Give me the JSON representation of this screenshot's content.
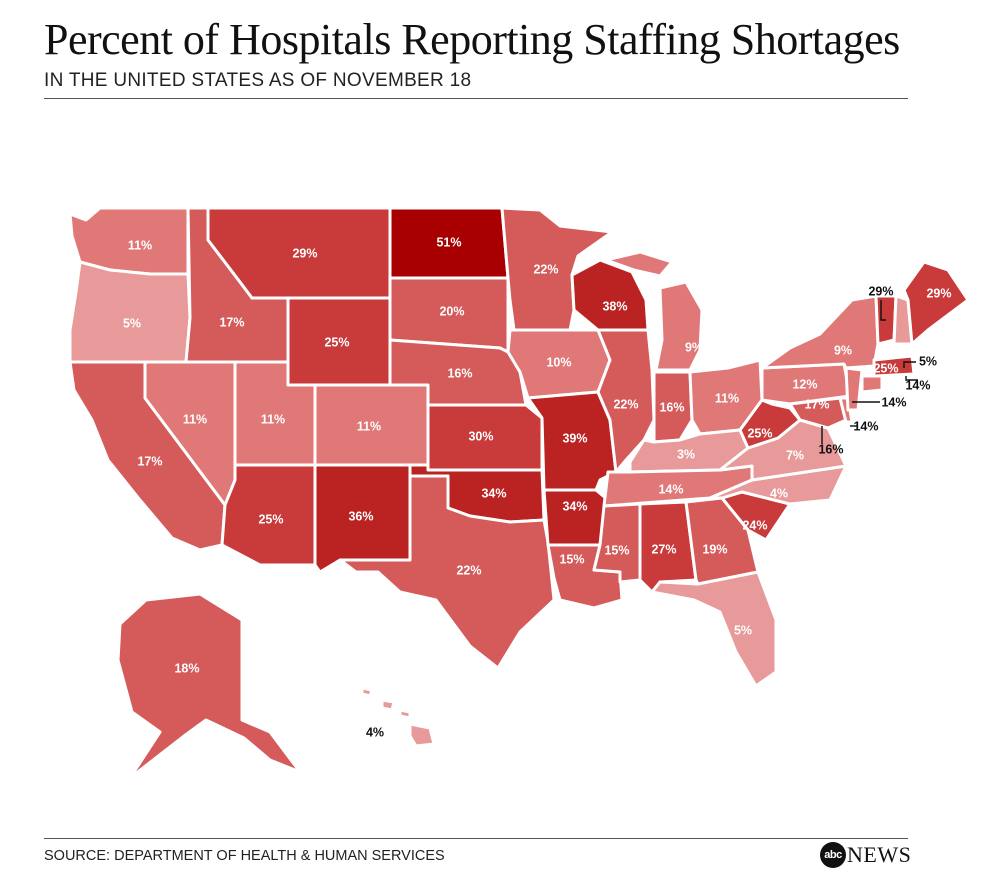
{
  "title": "Percent of Hospitals Reporting Staffing Shortages",
  "subtitle": "IN THE UNITED STATES AS OF NOVEMBER 18",
  "source": "SOURCE: DEPARTMENT OF HEALTH & HUMAN SERVICES",
  "logo": {
    "bug": "abc",
    "wordmark": "NEWS"
  },
  "colors": {
    "scale": [
      "#e89a9a",
      "#e07878",
      "#d55a5a",
      "#c93a3a",
      "#bb2222",
      "#a80000"
    ],
    "background": "#ffffff",
    "border": "#ffffff"
  },
  "states": {
    "WA": "11%",
    "OR": "5%",
    "CA": "17%",
    "NV": "11%",
    "ID": "17%",
    "MT": "29%",
    "WY": "25%",
    "UT": "11%",
    "AZ": "25%",
    "CO": "11%",
    "NM": "36%",
    "ND": "51%",
    "SD": "20%",
    "NE": "16%",
    "KS": "30%",
    "OK": "34%",
    "TX": "22%",
    "MN": "22%",
    "IA": "10%",
    "MO": "39%",
    "AR": "34%",
    "LA": "15%",
    "WI": "38%",
    "IL": "22%",
    "MI": "9%",
    "IN": "16%",
    "OH": "11%",
    "KY": "3%",
    "TN": "14%",
    "MS": "15%",
    "AL": "27%",
    "GA": "19%",
    "FL": "5%",
    "SC": "24%",
    "NC": "4%",
    "VA": "7%",
    "WV": "25%",
    "PA": "12%",
    "NY": "9%",
    "ME": "29%",
    "VT": "29%",
    "NH": "5%",
    "MA": "25%",
    "CT": "14%",
    "NJ": "14%",
    "DE": "14%",
    "MD": "17%",
    "DC": "16%",
    "AK": "18%",
    "HI": "4%"
  }
}
